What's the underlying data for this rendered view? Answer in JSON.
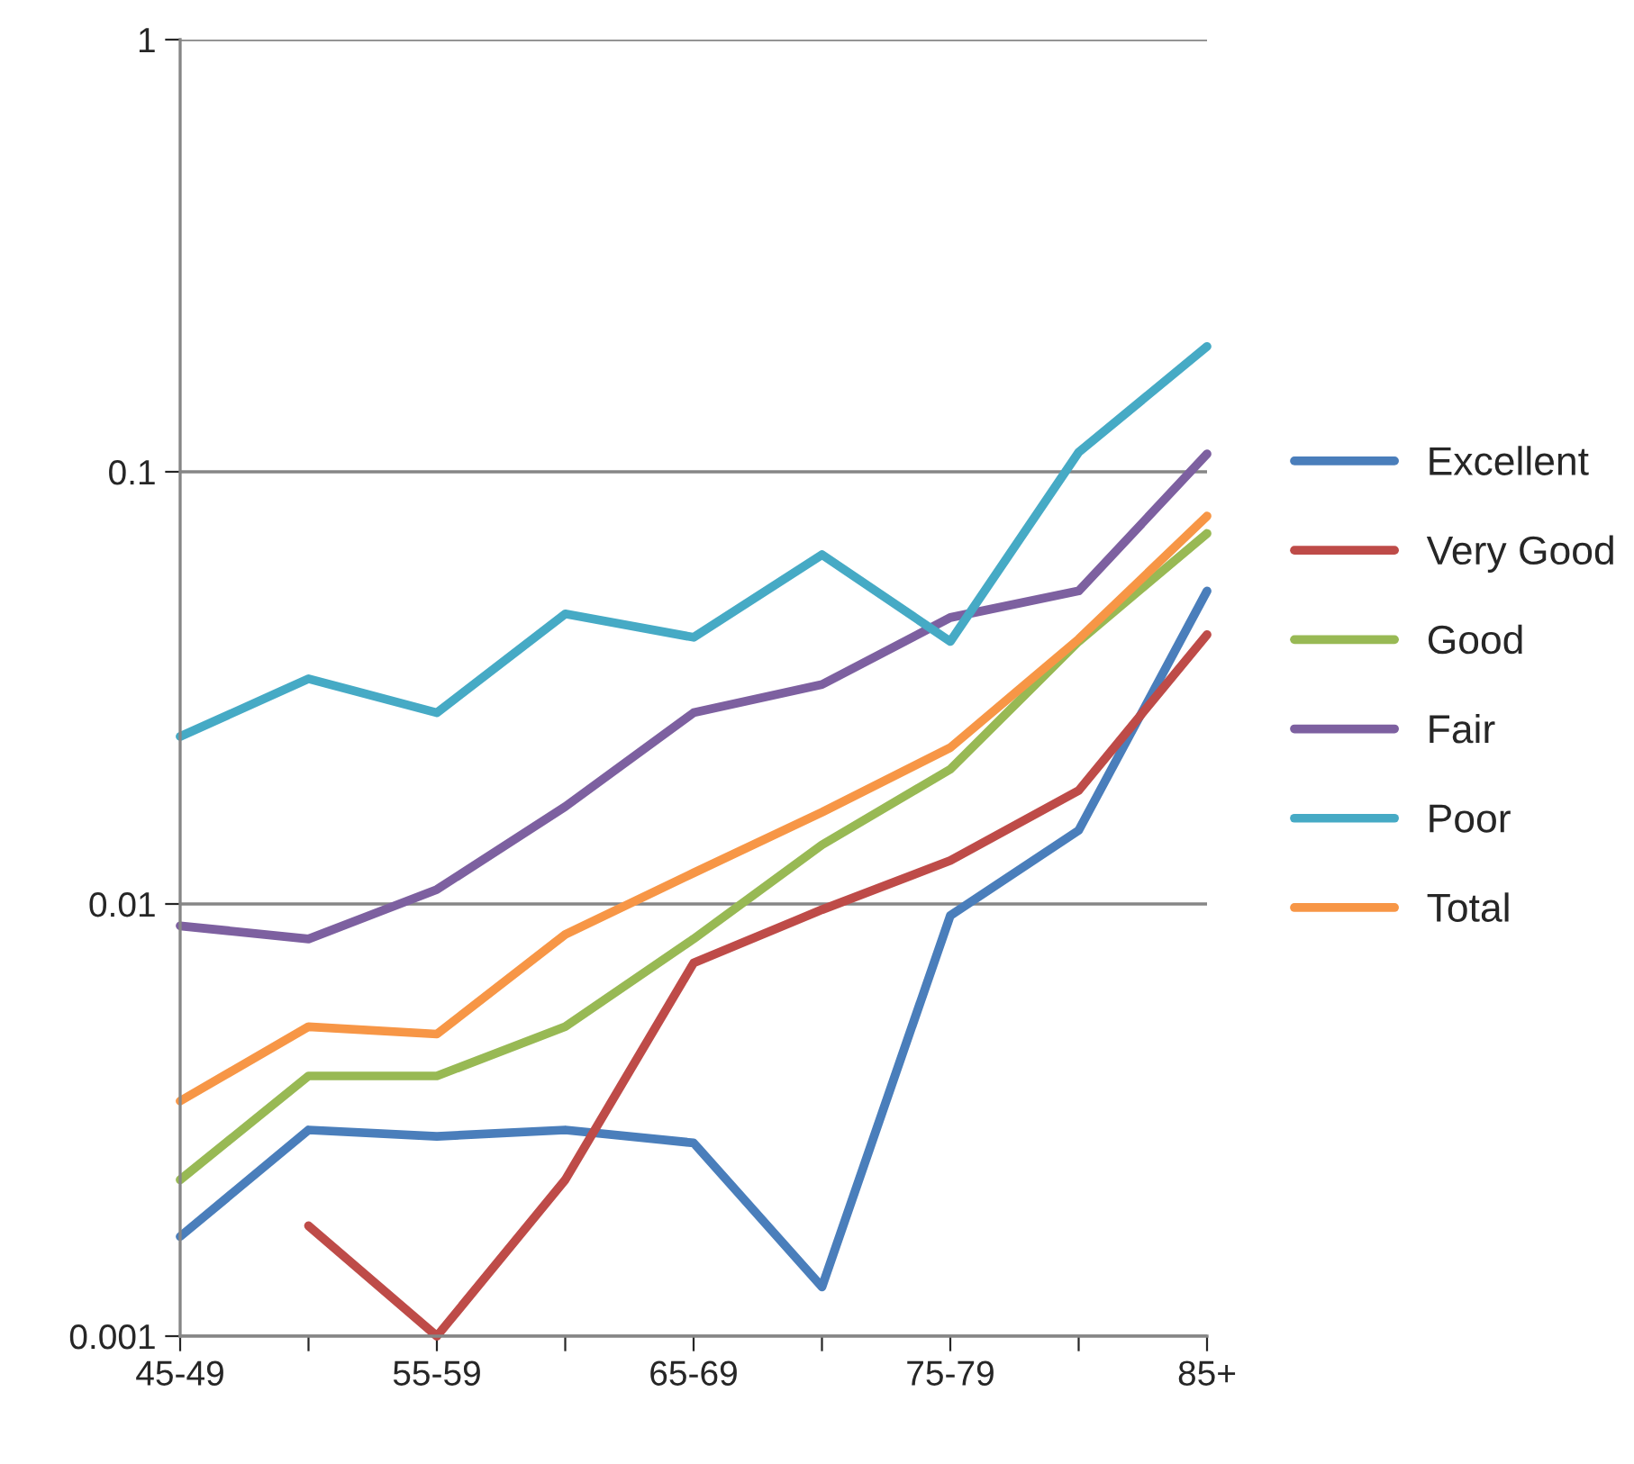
{
  "chart_data": {
    "type": "line",
    "categories": [
      "45-49",
      null,
      "55-59",
      null,
      "65-69",
      null,
      "75-79",
      null,
      "85+"
    ],
    "log": true,
    "ylim": [
      0.001,
      1
    ],
    "yticks": [
      0.001,
      0.01,
      0.1,
      1
    ],
    "grid": "y",
    "legend": "right",
    "marker": "none",
    "line_style": "solid",
    "series": [
      {
        "name": "Excellent",
        "color": "#4a7ebb",
        "values": [
          0.0017,
          0.003,
          0.0029,
          0.003,
          0.0028,
          0.0013,
          0.0094,
          0.0148,
          0.053
        ]
      },
      {
        "name": "Very Good",
        "color": "#be4b48",
        "values": [
          null,
          0.0018,
          0.001,
          0.0023,
          0.0073,
          0.0097,
          0.0126,
          0.0183,
          0.042
        ]
      },
      {
        "name": "Good",
        "color": "#98b954",
        "values": [
          0.0023,
          0.004,
          0.004,
          0.0052,
          0.0083,
          0.0137,
          0.0205,
          0.0405,
          0.072
        ]
      },
      {
        "name": "Fair",
        "color": "#7d60a0",
        "values": [
          0.0089,
          0.0083,
          0.0108,
          0.0168,
          0.0277,
          0.0322,
          0.046,
          0.053,
          0.11
        ]
      },
      {
        "name": "Poor",
        "color": "#46aac5",
        "values": [
          0.0244,
          0.0332,
          0.0277,
          0.0469,
          0.0414,
          0.0643,
          0.0405,
          0.111,
          0.195
        ]
      },
      {
        "name": "Total",
        "color": "#f79646",
        "values": [
          0.0035,
          0.0052,
          0.005,
          0.0085,
          0.0118,
          0.0163,
          0.023,
          0.041,
          0.079
        ]
      }
    ]
  }
}
